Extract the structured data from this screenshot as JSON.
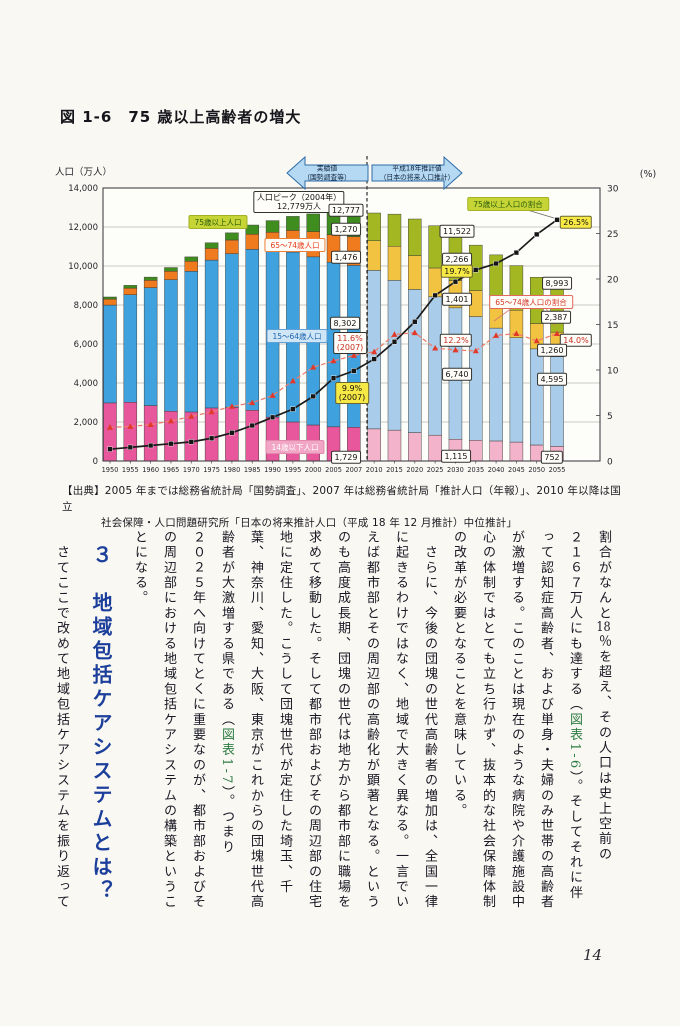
{
  "page": {
    "figure_title": "図 1-6　75 歳以上高齢者の増大",
    "page_number": "14"
  },
  "chart_data": {
    "type": "bar",
    "subtype": "stacked-bars-with-share-lines",
    "title": "75 歳以上高齢者の増大",
    "left_axis": {
      "label": "人口（万人）",
      "max": 14000,
      "ticks": [
        "0",
        "2,000",
        "4,000",
        "6,000",
        "8,000",
        "10,000",
        "12,000",
        "14,000"
      ]
    },
    "right_axis": {
      "label": "(%)",
      "max": 30,
      "ticks": [
        "0",
        "5",
        "10",
        "15",
        "20",
        "25",
        "30"
      ]
    },
    "categories": [
      "1950",
      "1955",
      "1960",
      "1965",
      "1970",
      "1975",
      "1980",
      "1985",
      "1990",
      "1995",
      "2000",
      "2005",
      "2007",
      "2010",
      "2015",
      "2020",
      "2025",
      "2030",
      "2035",
      "2040",
      "2045",
      "2050",
      "2055"
    ],
    "projection_start_index": 13,
    "bar_series": [
      {
        "name": "14歳以下人口",
        "color_actual": "#e8579b",
        "color_projection": "#f3b3cb",
        "values": [
          2979,
          3012,
          2843,
          2553,
          2515,
          2722,
          2751,
          2603,
          2249,
          2001,
          1847,
          1752,
          1729,
          1648,
          1583,
          1457,
          1324,
          1115,
          1063,
          1028,
          971,
          821,
          752
        ]
      },
      {
        "name": "15～64歳人口",
        "color_actual": "#3fa2df",
        "color_projection": "#a8cce9",
        "values": [
          5017,
          5517,
          6047,
          6744,
          7212,
          7581,
          7883,
          8251,
          8590,
          8716,
          8622,
          8442,
          8302,
          8128,
          7681,
          7341,
          7096,
          6740,
          6343,
          5787,
          5353,
          4930,
          4595
        ]
      },
      {
        "name": "65～74歳人口",
        "color_actual": "#f07a1e",
        "color_projection": "#f2c340",
        "values": [
          309,
          338,
          376,
          434,
          516,
          602,
          699,
          776,
          892,
          1109,
          1301,
          1407,
          1476,
          1522,
          1749,
          1733,
          1479,
          1401,
          1340,
          1457,
          1407,
          1300,
          1260
        ]
      },
      {
        "name": "75歳以上人口",
        "color_actual": "#3f8d1f",
        "color_projection": "#a2b722",
        "values": [
          106,
          139,
          164,
          189,
          224,
          284,
          366,
          471,
          597,
          717,
          900,
          1164,
          1270,
          1419,
          1646,
          1879,
          2167,
          2266,
          2323,
          2298,
          2290,
          2373,
          2387
        ]
      }
    ],
    "line_series": [
      {
        "name": "75歳以上人口の割合",
        "axis": "right",
        "color": "#1c1c1c",
        "marker": "square",
        "values": [
          1.3,
          1.5,
          1.7,
          1.9,
          2.1,
          2.5,
          3.1,
          3.9,
          4.8,
          5.7,
          7.1,
          9.1,
          9.9,
          11.2,
          13.1,
          15.3,
          18.2,
          19.7,
          21.0,
          21.7,
          22.9,
          24.9,
          26.5
        ]
      },
      {
        "name": "65～74歳人口の割合",
        "axis": "right",
        "color": "#ee7a6b",
        "marker": "triangle",
        "values": [
          3.7,
          3.8,
          4.0,
          4.4,
          4.9,
          5.4,
          6.0,
          6.4,
          7.2,
          8.8,
          10.3,
          11.0,
          11.6,
          12.0,
          13.9,
          14.1,
          12.4,
          12.2,
          12.1,
          13.8,
          14.0,
          13.2,
          14.0
        ]
      }
    ],
    "annotations": {
      "arrow_actual": "実績値\n（国勢調査等）",
      "arrow_projection": "平成18年推計値\n（日本の将来人口推計）",
      "pop_peak": "人口ピーク（2004年）\n12,779万人",
      "label_75": "75歳以上人口",
      "label_6574": "65～74歳人口",
      "label_1564": "15～64歳人口",
      "label_14": "14歳以下人口",
      "label_share75": "75歳以上人口の割合",
      "label_share6574": "65～74歳人口の割合",
      "v_12777": "12,777",
      "v_1270": "1,270",
      "v_1476": "1,476",
      "v_8302": "8,302",
      "p_116": "11.6%\n(2007)",
      "p_99": "9.9%\n(2007)",
      "v_1729": "1,729",
      "v_11522": "11,522",
      "v_2266": "2,266",
      "p_197": "19.7%",
      "v_1401": "1,401",
      "p_122": "12.2%",
      "v_6740": "6,740",
      "v_1115": "1,115",
      "v_8993": "8,993",
      "v_2387": "2,387",
      "p_140": "14.0%",
      "v_1260": "1,260",
      "v_4595": "4,595",
      "v_752": "752",
      "p_265": "26.5%"
    }
  },
  "source": {
    "line1": "【出典】2005 年までは総務省統計局「国勢調査」、2007 年は総務省統計局「推計人口（年報）」、2010 年以降は国立",
    "line2": "社会保障・人口問題研究所「日本の将来推計人口（平成 18 年 12 月推計）中位推計」"
  },
  "body": {
    "columns": [
      {
        "type": "text",
        "text": "割合がなんと18％を超え、その人口は史上空前の"
      },
      {
        "type": "text",
        "text": "２１６７万人にも達する（図表1-6）。そしてそれに伴"
      },
      {
        "type": "text",
        "text": "って認知症高齢者、および単身・夫婦のみ世帯の高齢者"
      },
      {
        "type": "text",
        "text": "が激増する。このことは現在のような病院や介護施設中"
      },
      {
        "type": "text",
        "text": "心の体制ではとても立ち行かず、抜本的な社会保障体制"
      },
      {
        "type": "text",
        "text": "の改革が必要となることを意味している。"
      },
      {
        "type": "text",
        "text": "　さらに、今後の団塊の世代高齢者の増加は、全国一律"
      },
      {
        "type": "text",
        "text": "に起きるわけではなく、地域で大きく異なる。一言でい"
      },
      {
        "type": "text",
        "text": "えば都市部とその周辺部の高齢化が顕著となる。という"
      },
      {
        "type": "text",
        "text": "のも高度成長期、団塊の世代は地方から都市部に職場を"
      },
      {
        "type": "text",
        "text": "求めて移動した。そして都市部およびその周辺部の住宅"
      },
      {
        "type": "text",
        "text": "地に定住した。こうして団塊世代が定住した埼玉、千"
      },
      {
        "type": "text",
        "text": "葉、神奈川、愛知、大阪、東京がこれからの団塊世代高"
      },
      {
        "type": "text",
        "text": "齢者が大激増する県である（図表1-7）。つまり"
      },
      {
        "type": "text",
        "text": "２０２５年へ向けてとくに重要なのが、都市部およびそ"
      },
      {
        "type": "text",
        "text": "の周辺部における地域包括ケアシステムの構築というこ"
      },
      {
        "type": "text",
        "text": "とになる。"
      },
      {
        "type": "heading",
        "text": "３　地域包括ケアシステムとは？"
      },
      {
        "type": "text",
        "text": "　さてここで改めて地域包括ケアシステムを振り返って"
      }
    ],
    "highlights": [
      "図表1-6",
      "図表1-7"
    ],
    "tcy": [
      "18"
    ]
  }
}
